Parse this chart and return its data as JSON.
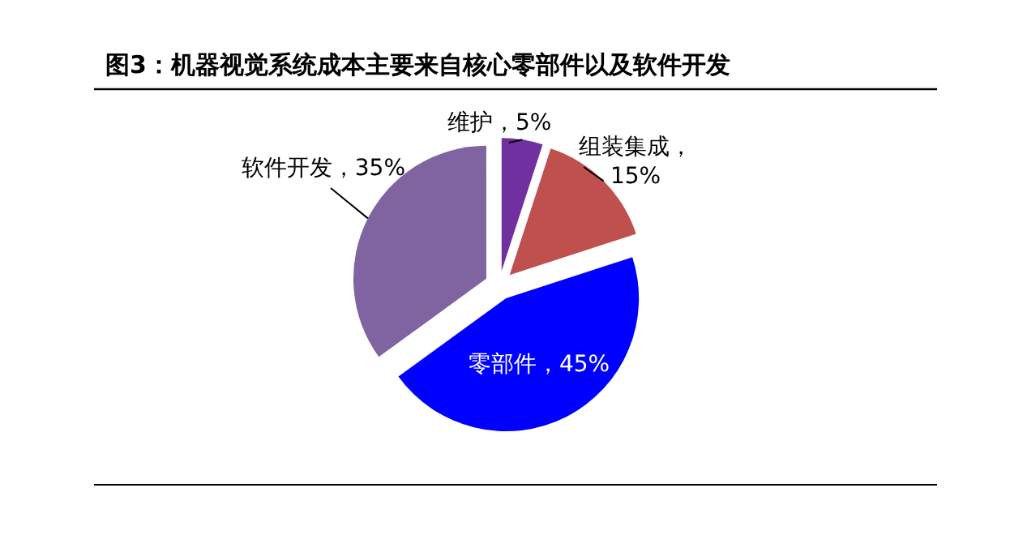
{
  "chart_data": {
    "type": "pie",
    "title": "图3：机器视觉系统成本主要来自核心零部件以及软件开发",
    "categories": [
      "维护",
      "组装集成",
      "零部件",
      "软件开发"
    ],
    "values": [
      5,
      15,
      45,
      35
    ],
    "colors": [
      "#7030a0",
      "#c0504d",
      "#0000ff",
      "#8064a2"
    ],
    "value_labels": [
      "，5%",
      "，\n15%",
      "，45%",
      "，35%"
    ]
  }
}
